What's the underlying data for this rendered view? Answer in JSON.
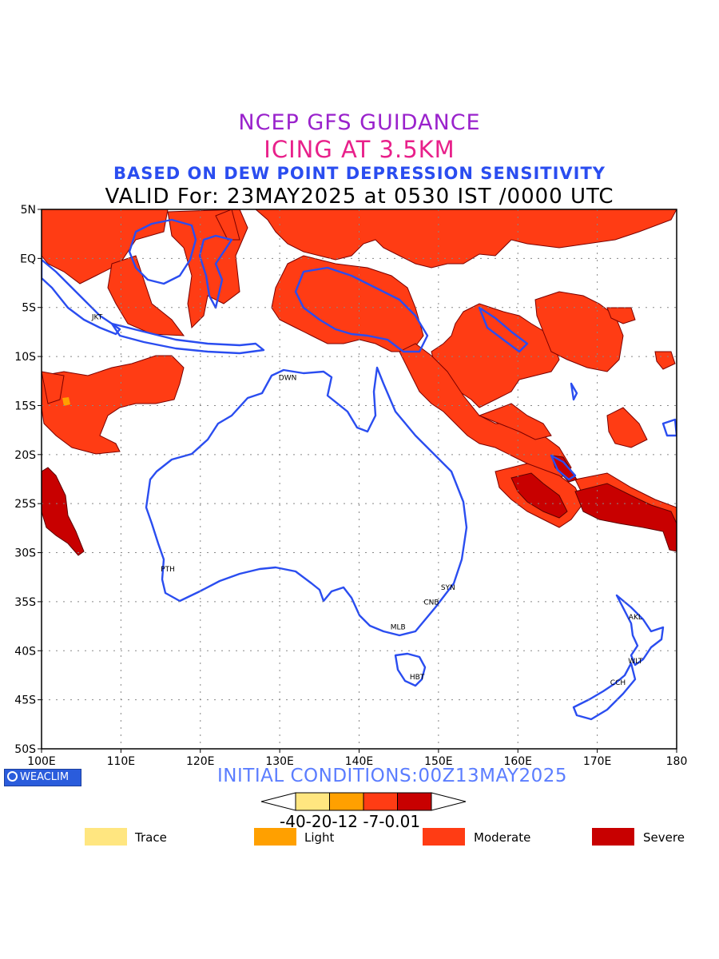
{
  "titles": {
    "line1": "NCEP GFS GUIDANCE",
    "line2": "ICING AT 3.5KM",
    "line3": "BASED ON DEW POINT DEPRESSION SENSITIVITY",
    "line4": "VALID For: 23MAY2025 at 0530 IST /0000 UTC"
  },
  "map": {
    "lon_range": [
      100,
      180
    ],
    "lat_range": [
      -50,
      5
    ],
    "lon_ticks": [
      "100E",
      "110E",
      "120E",
      "130E",
      "140E",
      "150E",
      "160E",
      "170E",
      "180"
    ],
    "lat_ticks": [
      "5N",
      "EQ",
      "5S",
      "10S",
      "15S",
      "20S",
      "25S",
      "30S",
      "35S",
      "40S",
      "45S",
      "50S"
    ],
    "grid": true,
    "stations": [
      {
        "code": "JKT",
        "lon": 107.0,
        "lat": -6.2
      },
      {
        "code": "DWN",
        "lon": 131.0,
        "lat": -12.4
      },
      {
        "code": "PTH",
        "lon": 115.9,
        "lat": -31.9
      },
      {
        "code": "SYN",
        "lon": 151.2,
        "lat": -33.8
      },
      {
        "code": "CNB",
        "lon": 149.1,
        "lat": -35.3
      },
      {
        "code": "MLB",
        "lon": 144.9,
        "lat": -37.8
      },
      {
        "code": "HBT",
        "lon": 147.3,
        "lat": -42.9
      },
      {
        "code": "AKL",
        "lon": 174.8,
        "lat": -36.8
      },
      {
        "code": "WLT",
        "lon": 174.8,
        "lat": -41.3
      },
      {
        "code": "CCH",
        "lon": 172.6,
        "lat": -43.5
      }
    ]
  },
  "initial_conditions": "INITIAL CONDITIONS:00Z13MAY2025",
  "logo": "WEACLIM",
  "colorbar": {
    "ticks": "-40-20-12 -7-0.01",
    "colors": [
      "#ffe680",
      "#ffa000",
      "#ff3c14",
      "#c80000"
    ]
  },
  "legend": [
    {
      "label": "Trace",
      "color": "#ffe680"
    },
    {
      "label": "Light",
      "color": "#ffa000"
    },
    {
      "label": "Moderate",
      "color": "#ff3c14"
    },
    {
      "label": "Severe",
      "color": "#c80000"
    }
  ],
  "colors": {
    "coast": "#2a4df0",
    "moderate": "#ff3c14",
    "severe": "#c80000"
  }
}
